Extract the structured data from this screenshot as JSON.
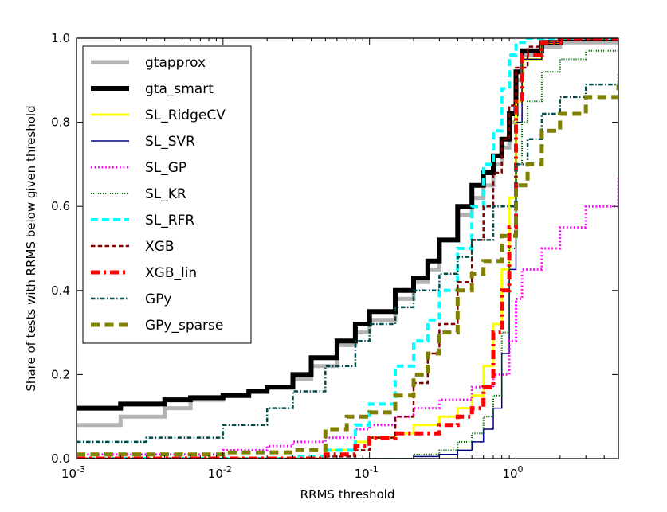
{
  "chart_data": {
    "type": "line",
    "title": "",
    "xlabel": "RRMS threshold",
    "ylabel": "Share of tests with RRMS below given threshold",
    "xscale": "log",
    "xlim": [
      0.001,
      5
    ],
    "ylim": [
      0.0,
      1.0
    ],
    "x_ticks": [
      {
        "value": 0.001,
        "base": "10",
        "exp": "-3"
      },
      {
        "value": 0.01,
        "base": "10",
        "exp": "-2"
      },
      {
        "value": 0.1,
        "base": "10",
        "exp": "-1"
      },
      {
        "value": 1,
        "base": "10",
        "exp": "0"
      }
    ],
    "y_ticks": [
      {
        "value": 0.0,
        "label": "0.0"
      },
      {
        "value": 0.2,
        "label": "0.2"
      },
      {
        "value": 0.4,
        "label": "0.4"
      },
      {
        "value": 0.6,
        "label": "0.6"
      },
      {
        "value": 0.8,
        "label": "0.8"
      },
      {
        "value": 1.0,
        "label": "1.0"
      }
    ],
    "legend_position": "top-left",
    "series": [
      {
        "name": "gtapprox",
        "color": "#b3b3b3",
        "style": "solid",
        "width": 5,
        "x": [
          0.001,
          0.002,
          0.004,
          0.006,
          0.01,
          0.015,
          0.02,
          0.03,
          0.04,
          0.06,
          0.08,
          0.1,
          0.15,
          0.2,
          0.25,
          0.3,
          0.4,
          0.5,
          0.6,
          0.7,
          0.8,
          0.9,
          1.0,
          1.1,
          1.5,
          2,
          5
        ],
        "y": [
          0.08,
          0.1,
          0.12,
          0.14,
          0.15,
          0.16,
          0.17,
          0.19,
          0.22,
          0.27,
          0.3,
          0.33,
          0.38,
          0.42,
          0.45,
          0.52,
          0.58,
          0.62,
          0.65,
          0.7,
          0.74,
          0.8,
          0.9,
          0.96,
          0.98,
          0.99,
          1.0
        ]
      },
      {
        "name": "gta_smart",
        "color": "#000000",
        "style": "solid",
        "width": 6,
        "x": [
          0.001,
          0.002,
          0.004,
          0.006,
          0.01,
          0.015,
          0.02,
          0.03,
          0.04,
          0.06,
          0.08,
          0.1,
          0.15,
          0.2,
          0.25,
          0.3,
          0.4,
          0.5,
          0.6,
          0.7,
          0.8,
          0.9,
          1.0,
          1.1,
          1.5,
          2,
          5
        ],
        "y": [
          0.12,
          0.13,
          0.14,
          0.145,
          0.15,
          0.16,
          0.17,
          0.2,
          0.24,
          0.28,
          0.32,
          0.35,
          0.4,
          0.43,
          0.47,
          0.52,
          0.6,
          0.65,
          0.68,
          0.72,
          0.76,
          0.82,
          0.92,
          0.97,
          0.99,
          1.0,
          1.0
        ]
      },
      {
        "name": "SL_RidgeCV",
        "color": "#ffff00",
        "style": "solid",
        "width": 3,
        "x": [
          0.001,
          0.01,
          0.05,
          0.08,
          0.1,
          0.15,
          0.2,
          0.3,
          0.4,
          0.5,
          0.6,
          0.7,
          0.8,
          0.9,
          1.0,
          1.1,
          1.5,
          2,
          5
        ],
        "y": [
          0.0,
          0.0,
          0.02,
          0.04,
          0.05,
          0.06,
          0.08,
          0.1,
          0.12,
          0.15,
          0.22,
          0.32,
          0.45,
          0.62,
          0.85,
          0.95,
          0.99,
          1.0,
          1.0
        ]
      },
      {
        "name": "SL_SVR",
        "color": "#000080",
        "style": "solid",
        "width": 1.5,
        "x": [
          0.001,
          0.01,
          0.1,
          0.2,
          0.3,
          0.4,
          0.5,
          0.6,
          0.7,
          0.8,
          0.9,
          1.0,
          1.1,
          1.5,
          2,
          5
        ],
        "y": [
          0.0,
          0.0,
          0.0,
          0.005,
          0.01,
          0.02,
          0.04,
          0.07,
          0.12,
          0.25,
          0.45,
          0.8,
          0.95,
          0.99,
          1.0,
          1.0
        ]
      },
      {
        "name": "SL_GP",
        "color": "#ff00ff",
        "style": "dotted",
        "width": 3,
        "x": [
          0.001,
          0.005,
          0.01,
          0.02,
          0.03,
          0.05,
          0.08,
          0.1,
          0.15,
          0.2,
          0.3,
          0.5,
          0.7,
          0.9,
          1.0,
          1.1,
          1.5,
          2,
          3,
          5
        ],
        "y": [
          0.01,
          0.01,
          0.02,
          0.03,
          0.04,
          0.05,
          0.07,
          0.08,
          0.1,
          0.12,
          0.14,
          0.17,
          0.2,
          0.28,
          0.38,
          0.45,
          0.5,
          0.55,
          0.6,
          0.67
        ]
      },
      {
        "name": "SL_KR",
        "color": "#006400",
        "style": "dotted",
        "width": 2,
        "x": [
          0.001,
          0.01,
          0.1,
          0.2,
          0.3,
          0.4,
          0.5,
          0.6,
          0.7,
          0.8,
          0.9,
          1.0,
          1.1,
          1.2,
          1.5,
          2,
          3,
          5
        ],
        "y": [
          0.0,
          0.0,
          0.0,
          0.01,
          0.02,
          0.04,
          0.06,
          0.1,
          0.15,
          0.3,
          0.5,
          0.7,
          0.8,
          0.85,
          0.92,
          0.95,
          0.97,
          0.975
        ]
      },
      {
        "name": "SL_RFR",
        "color": "#00ffff",
        "style": "dashed",
        "width": 4,
        "x": [
          0.001,
          0.01,
          0.03,
          0.05,
          0.08,
          0.1,
          0.15,
          0.2,
          0.25,
          0.3,
          0.4,
          0.5,
          0.6,
          0.7,
          0.8,
          0.9,
          1.0,
          1.2,
          1.5,
          2,
          5
        ],
        "y": [
          0.0,
          0.0,
          0.005,
          0.02,
          0.08,
          0.13,
          0.22,
          0.28,
          0.33,
          0.4,
          0.5,
          0.6,
          0.7,
          0.78,
          0.88,
          0.96,
          0.99,
          1.0,
          1.0,
          1.0,
          1.0
        ]
      },
      {
        "name": "XGB",
        "color": "#800000",
        "style": "dashed",
        "width": 2.5,
        "x": [
          0.001,
          0.01,
          0.03,
          0.05,
          0.08,
          0.1,
          0.15,
          0.2,
          0.25,
          0.3,
          0.4,
          0.5,
          0.6,
          0.7,
          0.8,
          0.9,
          1.0,
          1.2,
          1.5,
          2,
          5
        ],
        "y": [
          0.0,
          0.0,
          0.0,
          0.005,
          0.02,
          0.05,
          0.1,
          0.18,
          0.25,
          0.32,
          0.42,
          0.52,
          0.6,
          0.68,
          0.76,
          0.84,
          0.93,
          0.98,
          0.99,
          1.0,
          1.0
        ]
      },
      {
        "name": "XGB_lin",
        "color": "#ff0000",
        "style": "dashdot",
        "width": 5,
        "x": [
          0.001,
          0.01,
          0.05,
          0.08,
          0.1,
          0.15,
          0.2,
          0.3,
          0.4,
          0.5,
          0.6,
          0.7,
          0.8,
          0.9,
          1.0,
          1.1,
          1.5,
          2,
          5
        ],
        "y": [
          0.0,
          0.0,
          0.01,
          0.03,
          0.05,
          0.06,
          0.06,
          0.08,
          0.1,
          0.12,
          0.17,
          0.3,
          0.4,
          0.55,
          0.85,
          0.96,
          0.99,
          1.0,
          1.0
        ]
      },
      {
        "name": "GPy",
        "color": "#004d4d",
        "style": "dashdot",
        "width": 2.5,
        "x": [
          0.001,
          0.003,
          0.01,
          0.02,
          0.03,
          0.05,
          0.08,
          0.1,
          0.15,
          0.2,
          0.3,
          0.4,
          0.5,
          0.7,
          1.0,
          1.2,
          1.5,
          2,
          3,
          5
        ],
        "y": [
          0.04,
          0.05,
          0.08,
          0.12,
          0.16,
          0.22,
          0.28,
          0.32,
          0.36,
          0.4,
          0.44,
          0.48,
          0.52,
          0.6,
          0.7,
          0.76,
          0.82,
          0.86,
          0.89,
          0.915
        ]
      },
      {
        "name": "GPy_sparse",
        "color": "#808000",
        "style": "dashed",
        "width": 5,
        "x": [
          0.001,
          0.005,
          0.01,
          0.03,
          0.05,
          0.07,
          0.1,
          0.15,
          0.2,
          0.25,
          0.3,
          0.4,
          0.5,
          0.6,
          0.8,
          1.0,
          1.2,
          1.5,
          2,
          3,
          5
        ],
        "y": [
          0.01,
          0.01,
          0.015,
          0.02,
          0.07,
          0.1,
          0.11,
          0.15,
          0.2,
          0.25,
          0.3,
          0.4,
          0.44,
          0.47,
          0.53,
          0.65,
          0.7,
          0.78,
          0.82,
          0.86,
          0.89
        ]
      }
    ]
  }
}
